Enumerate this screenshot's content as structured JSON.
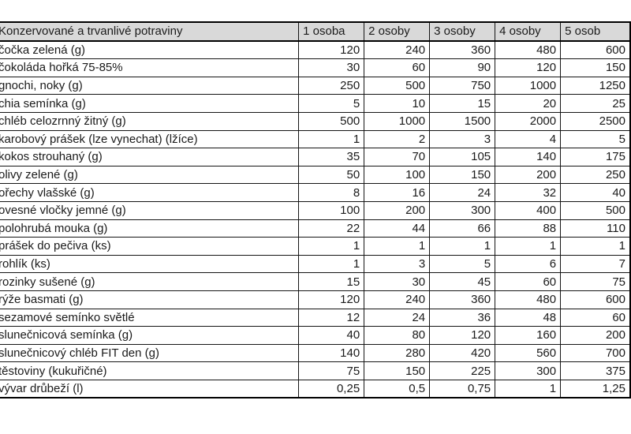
{
  "table": {
    "title_header": "Konzervované a trvanlivé potraviny",
    "columns": [
      "1 osoba",
      "2 osoby",
      "3 osoby",
      "4 osoby",
      "5 osob"
    ],
    "rows": [
      {
        "label": "čočka zelená (g)",
        "values": [
          "120",
          "240",
          "360",
          "480",
          "600"
        ]
      },
      {
        "label": "čokoláda hořká 75-85%",
        "values": [
          "30",
          "60",
          "90",
          "120",
          "150"
        ]
      },
      {
        "label": "gnochi, noky (g)",
        "values": [
          "250",
          "500",
          "750",
          "1000",
          "1250"
        ]
      },
      {
        "label": "chia semínka (g)",
        "values": [
          "5",
          "10",
          "15",
          "20",
          "25"
        ]
      },
      {
        "label": "chléb celozrnný žitný (g)",
        "values": [
          "500",
          "1000",
          "1500",
          "2000",
          "2500"
        ]
      },
      {
        "label": "karobový prášek (lze vynechat) (lžíce)",
        "values": [
          "1",
          "2",
          "3",
          "4",
          "5"
        ]
      },
      {
        "label": "kokos strouhaný (g)",
        "values": [
          "35",
          "70",
          "105",
          "140",
          "175"
        ]
      },
      {
        "label": "olivy zelené (g)",
        "values": [
          "50",
          "100",
          "150",
          "200",
          "250"
        ]
      },
      {
        "label": "ořechy vlašské (g)",
        "values": [
          "8",
          "16",
          "24",
          "32",
          "40"
        ]
      },
      {
        "label": "ovesné vločky jemné (g)",
        "values": [
          "100",
          "200",
          "300",
          "400",
          "500"
        ]
      },
      {
        "label": "polohrubá mouka (g)",
        "values": [
          "22",
          "44",
          "66",
          "88",
          "110"
        ]
      },
      {
        "label": "prášek do pečiva (ks)",
        "values": [
          "1",
          "1",
          "1",
          "1",
          "1"
        ]
      },
      {
        "label": "rohlík (ks)",
        "values": [
          "1",
          "3",
          "5",
          "6",
          "7"
        ]
      },
      {
        "label": "rozinky sušené (g)",
        "values": [
          "15",
          "30",
          "45",
          "60",
          "75"
        ]
      },
      {
        "label": "rýže basmati (g)",
        "values": [
          "120",
          "240",
          "360",
          "480",
          "600"
        ]
      },
      {
        "label": "sezamové semínko světlé",
        "values": [
          "12",
          "24",
          "36",
          "48",
          "60"
        ]
      },
      {
        "label": "slunečnicová semínka (g)",
        "values": [
          "40",
          "80",
          "120",
          "160",
          "200"
        ]
      },
      {
        "label": "slunečnicový chléb FIT den (g)",
        "values": [
          "140",
          "280",
          "420",
          "560",
          "700"
        ]
      },
      {
        "label": "těstoviny (kukuřičné)",
        "values": [
          "75",
          "150",
          "225",
          "300",
          "375"
        ]
      },
      {
        "label": "vývar drůbeží (l)",
        "values": [
          "0,25",
          "0,5",
          "0,75",
          "1",
          "1,25"
        ]
      }
    ],
    "colors": {
      "header_bg": "#d9d9d9",
      "border": "#000000",
      "text": "#1a1a1a",
      "cell_bg": "#ffffff"
    }
  }
}
